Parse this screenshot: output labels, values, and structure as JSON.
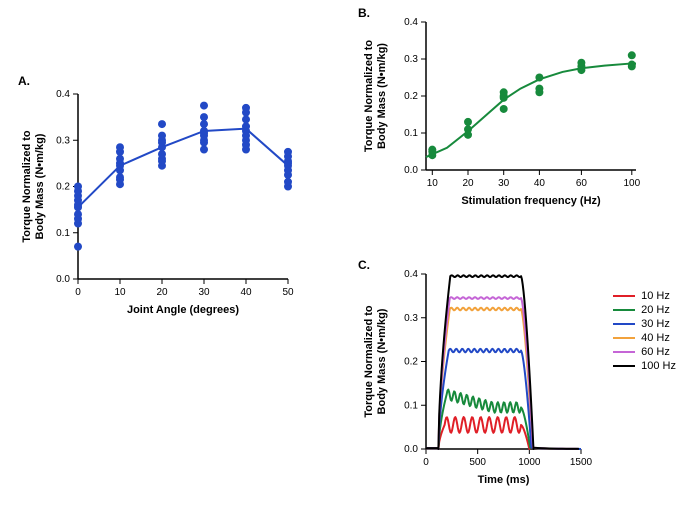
{
  "panelA": {
    "label": "A.",
    "type": "scatter-with-line",
    "x_title": "Joint Angle (degrees)",
    "y_title": "Torque Normalized to\nBody Mass (N•m/kg)",
    "xlim": [
      0,
      50
    ],
    "xtick_step": 10,
    "ylim": [
      0,
      0.4
    ],
    "ytick_step": 0.1,
    "marker_color": "#2249c6",
    "line_color": "#2249c6",
    "line_width": 2,
    "marker_radius": 4,
    "label_fontsize": 11,
    "tick_fontsize": 10,
    "points": [
      [
        0,
        0.07
      ],
      [
        0,
        0.12
      ],
      [
        0,
        0.13
      ],
      [
        0,
        0.14
      ],
      [
        0,
        0.155
      ],
      [
        0,
        0.16
      ],
      [
        0,
        0.17
      ],
      [
        0,
        0.18
      ],
      [
        0,
        0.19
      ],
      [
        0,
        0.2
      ],
      [
        10,
        0.205
      ],
      [
        10,
        0.215
      ],
      [
        10,
        0.22
      ],
      [
        10,
        0.235
      ],
      [
        10,
        0.245
      ],
      [
        10,
        0.25
      ],
      [
        10,
        0.26
      ],
      [
        10,
        0.275
      ],
      [
        10,
        0.285
      ],
      [
        20,
        0.245
      ],
      [
        20,
        0.255
      ],
      [
        20,
        0.26
      ],
      [
        20,
        0.27
      ],
      [
        20,
        0.285
      ],
      [
        20,
        0.295
      ],
      [
        20,
        0.3
      ],
      [
        20,
        0.31
      ],
      [
        20,
        0.335
      ],
      [
        30,
        0.28
      ],
      [
        30,
        0.295
      ],
      [
        30,
        0.3
      ],
      [
        30,
        0.31
      ],
      [
        30,
        0.315
      ],
      [
        30,
        0.32
      ],
      [
        30,
        0.335
      ],
      [
        30,
        0.35
      ],
      [
        30,
        0.375
      ],
      [
        40,
        0.28
      ],
      [
        40,
        0.29
      ],
      [
        40,
        0.3
      ],
      [
        40,
        0.31
      ],
      [
        40,
        0.32
      ],
      [
        40,
        0.33
      ],
      [
        40,
        0.345
      ],
      [
        40,
        0.36
      ],
      [
        40,
        0.37
      ],
      [
        50,
        0.2
      ],
      [
        50,
        0.21
      ],
      [
        50,
        0.225
      ],
      [
        50,
        0.235
      ],
      [
        50,
        0.245
      ],
      [
        50,
        0.25
      ],
      [
        50,
        0.255
      ],
      [
        50,
        0.265
      ],
      [
        50,
        0.275
      ]
    ],
    "line_means": [
      [
        0,
        0.155
      ],
      [
        10,
        0.245
      ],
      [
        20,
        0.285
      ],
      [
        30,
        0.32
      ],
      [
        40,
        0.325
      ],
      [
        50,
        0.245
      ]
    ]
  },
  "panelB": {
    "label": "B.",
    "type": "scatter-with-curve",
    "x_title": "Stimulation frequency (Hz)",
    "y_title": "Torque Normalized to\nBody Mass (N•m/kg)",
    "y_title_offset": -48,
    "xlim": [
      60,
      100
    ],
    "x_ticks": [
      10,
      20,
      30,
      40,
      60,
      100
    ],
    "x_tick_pos": [
      0.03,
      0.2,
      0.37,
      0.54,
      0.74,
      0.98
    ],
    "ylim": [
      0,
      0.4
    ],
    "ytick_step": 0.1,
    "marker_color": "#178a3c",
    "line_color": "#178a3c",
    "line_width": 2,
    "marker_radius": 4,
    "label_fontsize": 11,
    "tick_fontsize": 10,
    "points": [
      [
        0.03,
        0.04
      ],
      [
        0.03,
        0.05
      ],
      [
        0.03,
        0.055
      ],
      [
        0.2,
        0.095
      ],
      [
        0.2,
        0.11
      ],
      [
        0.2,
        0.13
      ],
      [
        0.37,
        0.165
      ],
      [
        0.37,
        0.195
      ],
      [
        0.37,
        0.21
      ],
      [
        0.37,
        0.2
      ],
      [
        0.54,
        0.21
      ],
      [
        0.54,
        0.22
      ],
      [
        0.54,
        0.25
      ],
      [
        0.74,
        0.27
      ],
      [
        0.74,
        0.28
      ],
      [
        0.74,
        0.29
      ],
      [
        0.98,
        0.28
      ],
      [
        0.98,
        0.285
      ],
      [
        0.98,
        0.31
      ]
    ],
    "curve": [
      [
        0.0,
        0.035
      ],
      [
        0.1,
        0.06
      ],
      [
        0.2,
        0.105
      ],
      [
        0.3,
        0.155
      ],
      [
        0.37,
        0.19
      ],
      [
        0.45,
        0.22
      ],
      [
        0.54,
        0.245
      ],
      [
        0.65,
        0.265
      ],
      [
        0.74,
        0.275
      ],
      [
        0.85,
        0.282
      ],
      [
        0.98,
        0.288
      ],
      [
        1.0,
        0.288
      ]
    ]
  },
  "panelC": {
    "label": "C.",
    "type": "line",
    "x_title": "Time (ms)",
    "y_title": "Torque Normalized to\nBody Mass (N•m/kg)",
    "y_title_offset": -48,
    "xlim": [
      0,
      1500
    ],
    "xtick_step": 500,
    "ylim": [
      0,
      0.4
    ],
    "ytick_step": 0.1,
    "label_fontsize": 11,
    "tick_fontsize": 10,
    "line_width": 2,
    "legend": [
      {
        "label": "10 Hz",
        "color": "#e01f27"
      },
      {
        "label": "20 Hz",
        "color": "#178a3c"
      },
      {
        "label": "30 Hz",
        "color": "#2249c6"
      },
      {
        "label": "40 Hz",
        "color": "#f2a23c"
      },
      {
        "label": "60 Hz",
        "color": "#c565d6"
      },
      {
        "label": "100 Hz",
        "color": "#000000"
      }
    ],
    "series": {
      "10": {
        "color": "#e01f27",
        "rise": 120,
        "plateau_start": 180,
        "plateau_end": 920,
        "fall": 1000,
        "amp": 0.055,
        "ripple": 0.018,
        "ripple_n": 9
      },
      "20": {
        "color": "#178a3c",
        "rise": 120,
        "plateau_start": 200,
        "plateau_end": 920,
        "fall": 1010,
        "amp": 0.11,
        "amp_end": 0.095,
        "ripple": 0.012,
        "peak": 0.125,
        "peak_t": 240
      },
      "30": {
        "color": "#2249c6",
        "rise": 120,
        "plateau_start": 220,
        "plateau_end": 920,
        "fall": 1020,
        "amp": 0.225,
        "amp_end": 0.225,
        "ripple": 0.004
      },
      "40": {
        "color": "#f2a23c",
        "rise": 120,
        "plateau_start": 230,
        "plateau_end": 920,
        "fall": 1030,
        "amp": 0.32,
        "amp_end": 0.32,
        "ripple": 0.003
      },
      "60": {
        "color": "#c565d6",
        "rise": 120,
        "plateau_start": 230,
        "plateau_end": 920,
        "fall": 1035,
        "amp": 0.345,
        "amp_end": 0.345,
        "ripple": 0.002
      },
      "100": {
        "color": "#000000",
        "rise": 120,
        "plateau_start": 235,
        "plateau_end": 920,
        "fall": 1040,
        "amp": 0.395,
        "amp_end": 0.395,
        "ripple": 0.002
      }
    }
  }
}
